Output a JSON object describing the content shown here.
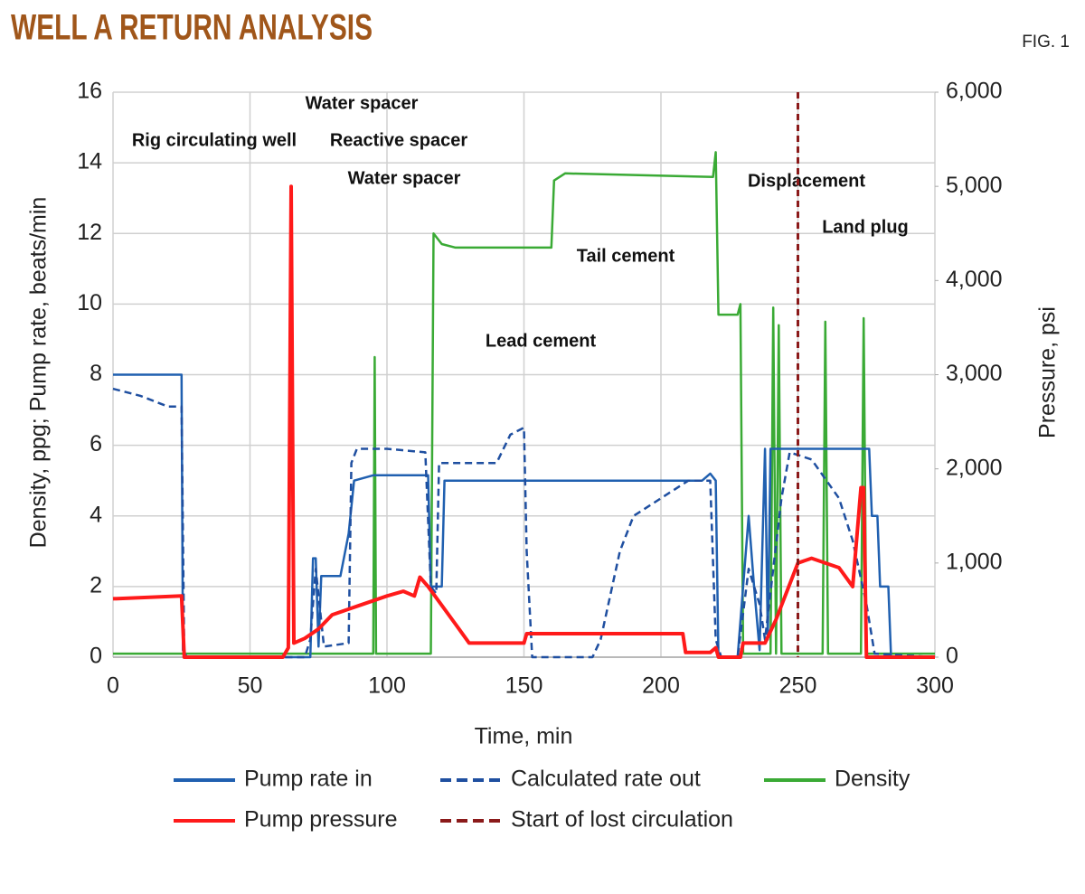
{
  "chart_data": {
    "type": "line",
    "title": "WELL A RETURN ANALYSIS",
    "figure_label": "FIG. 1",
    "x_label": "Time, min",
    "y_label": "Density, ppg; Pump rate, beats/min",
    "y2_label": "Pressure, psi",
    "xlim": [
      0,
      300
    ],
    "xticks": [
      0,
      50,
      100,
      150,
      200,
      250,
      300
    ],
    "ylim": [
      0,
      16
    ],
    "yticks": [
      0,
      2,
      4,
      6,
      8,
      10,
      12,
      14,
      16
    ],
    "y2lim": [
      0,
      6000
    ],
    "y2ticks": [
      0,
      {
        "value": 1000,
        "label": "1,000"
      },
      {
        "value": 2000,
        "label": "2,000"
      },
      {
        "value": 3000,
        "label": "3,000"
      },
      {
        "value": 4000,
        "label": "4,000"
      },
      {
        "value": 5000,
        "label": "5,000"
      },
      {
        "value": 6000,
        "label": "6,000"
      }
    ],
    "grid": true,
    "legend": "bottom",
    "annotations": [
      "Water spacer",
      "Rig circulating well",
      "Reactive spacer",
      "Water spacer",
      "Tail cement",
      "Lead cement",
      "Displacement",
      "Land plug"
    ],
    "series": [
      {
        "name": "Pump rate in",
        "color": "#2060b0",
        "line_style": "solid",
        "x": [
          0,
          25,
          25.5,
          27,
          72,
          73,
          74,
          75,
          76,
          83,
          86,
          88,
          95,
          115,
          116,
          120,
          121,
          200,
          215,
          218,
          220,
          221,
          228,
          230,
          232,
          234,
          236,
          238,
          239,
          240,
          276,
          277,
          279,
          280,
          283,
          284,
          300
        ],
        "values": [
          8,
          8,
          0.2,
          0,
          0,
          2.8,
          2.8,
          0.3,
          2.3,
          2.3,
          3.5,
          5,
          5.15,
          5.15,
          2,
          2,
          5,
          5,
          5,
          5.2,
          5,
          0,
          0,
          2,
          4,
          2,
          0.2,
          5.9,
          0.5,
          5.9,
          5.9,
          4,
          4,
          2,
          2,
          0,
          0
        ]
      },
      {
        "name": "Calculated rate out",
        "color": "#1f4fa0",
        "line_style": "dashed",
        "x": [
          0,
          10,
          20,
          25,
          26,
          70,
          72,
          74,
          77,
          86,
          87,
          89,
          100,
          114,
          116,
          118,
          119,
          125,
          140,
          145,
          150,
          151,
          153,
          175,
          178,
          185,
          190,
          200,
          210,
          218,
          220,
          222,
          228,
          232,
          236,
          238,
          244,
          247,
          255,
          265,
          270,
          275,
          278,
          300
        ],
        "values": [
          7.6,
          7.4,
          7.1,
          7.1,
          0,
          0,
          0.5,
          2.5,
          0.3,
          0.4,
          5.5,
          5.9,
          5.9,
          5.8,
          2,
          1.8,
          5.5,
          5.5,
          5.5,
          6.3,
          6.5,
          3,
          0,
          0,
          0.5,
          3,
          4,
          4.5,
          5,
          5,
          0.5,
          0,
          0,
          2.5,
          1.5,
          0.5,
          4.5,
          5.8,
          5.6,
          4.5,
          3.3,
          1.5,
          0.1,
          0
        ]
      },
      {
        "name": "Density",
        "color": "#3aaa35",
        "line_style": "solid",
        "x": [
          0,
          95,
          95.5,
          96,
          116,
          117,
          120,
          125,
          160,
          161,
          165,
          219,
          220,
          221,
          228,
          229,
          230,
          240,
          241,
          242,
          243,
          244,
          259,
          260,
          261,
          273,
          274,
          275,
          300
        ],
        "values": [
          0.1,
          0.1,
          8.5,
          0.1,
          0.1,
          12,
          11.7,
          11.6,
          11.6,
          13.5,
          13.7,
          13.6,
          14.3,
          9.7,
          9.7,
          10,
          0.1,
          0.1,
          9.9,
          0.1,
          9.4,
          0.1,
          0.1,
          9.5,
          0.1,
          0.1,
          9.6,
          0.1,
          0.1
        ]
      },
      {
        "name": "Pump pressure",
        "color": "#ff1a1a",
        "line_style": "solid",
        "axis": "y2",
        "x": [
          0,
          25,
          26,
          62,
          64,
          65,
          66,
          70,
          75,
          80,
          90,
          100,
          106,
          110,
          112,
          115,
          125,
          130,
          150,
          151,
          200,
          208,
          209,
          218,
          220,
          221,
          229,
          230,
          238,
          242,
          250,
          255,
          265,
          270,
          273,
          274,
          275,
          300
        ],
        "values": [
          620,
          650,
          0,
          0,
          100,
          5000,
          150,
          200,
          300,
          450,
          550,
          650,
          700,
          650,
          850,
          750,
          350,
          150,
          150,
          250,
          250,
          250,
          50,
          50,
          100,
          0,
          0,
          150,
          150,
          400,
          1000,
          1050,
          950,
          750,
          1800,
          1800,
          0,
          0
        ]
      },
      {
        "name": "Start of lost circulation",
        "color": "#8b1a1a",
        "line_style": "dashed",
        "style": "vline",
        "x": [
          250
        ]
      }
    ]
  }
}
